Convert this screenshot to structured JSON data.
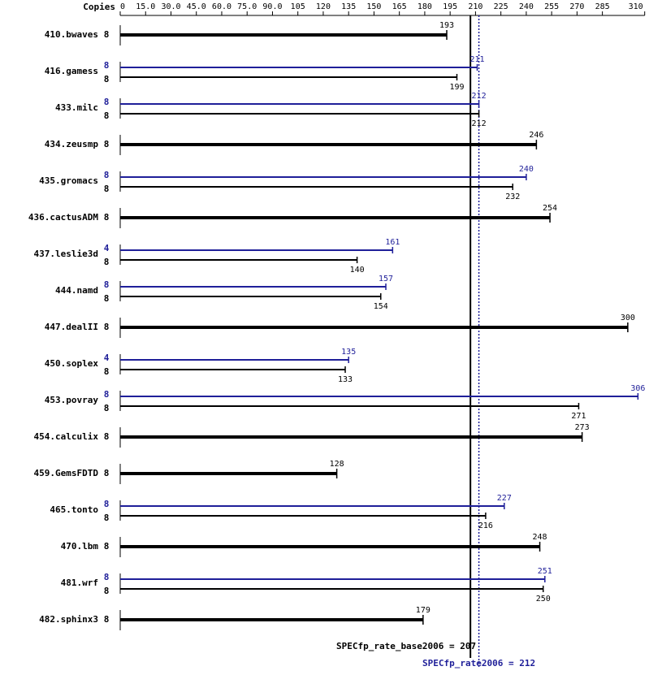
{
  "chart_data": {
    "type": "bar",
    "orientation": "horizontal",
    "copies_label": "Copies",
    "categories": [
      "410.bwaves",
      "416.gamess",
      "433.milc",
      "434.zeusmp",
      "435.gromacs",
      "436.cactusADM",
      "437.leslie3d",
      "444.namd",
      "447.dealII",
      "450.soplex",
      "453.povray",
      "454.calculix",
      "459.GemsFDTD",
      "465.tonto",
      "470.lbm",
      "481.wrf",
      "482.sphinx3"
    ],
    "series": [
      {
        "color": "#000000",
        "values": [
          193,
          199,
          212,
          246,
          232,
          254,
          140,
          154,
          300,
          133,
          271,
          273,
          128,
          216,
          248,
          250,
          179
        ],
        "copies": [
          8,
          8,
          8,
          8,
          8,
          8,
          8,
          8,
          8,
          8,
          8,
          8,
          8,
          8,
          8,
          8,
          8
        ]
      },
      {
        "color": "#1f1f99",
        "values": [
          null,
          211,
          212,
          null,
          240,
          null,
          161,
          157,
          null,
          135,
          306,
          null,
          null,
          227,
          null,
          251,
          null
        ],
        "copies": [
          null,
          8,
          8,
          null,
          8,
          null,
          4,
          8,
          null,
          4,
          8,
          null,
          null,
          8,
          null,
          8,
          null
        ]
      }
    ],
    "xlim": [
      0,
      310
    ],
    "xticks": [
      0,
      {
        "value": 15,
        "label": "15.0"
      },
      {
        "value": 30,
        "label": "30.0"
      },
      {
        "value": 45,
        "label": "45.0"
      },
      {
        "value": 60,
        "label": "60.0"
      },
      {
        "value": 75,
        "label": "75.0"
      },
      {
        "value": 90,
        "label": "90.0"
      },
      105,
      120,
      135,
      150,
      165,
      180,
      195,
      210,
      225,
      240,
      255,
      270,
      285,
      310
    ],
    "reference_lines": [
      {
        "label": "SPECfp_rate_base2006 = 207",
        "value": 207,
        "color": "#000000"
      },
      {
        "label": "SPECfp_rate2006 = 212",
        "value": 212,
        "color": "#1f1f99"
      }
    ]
  }
}
